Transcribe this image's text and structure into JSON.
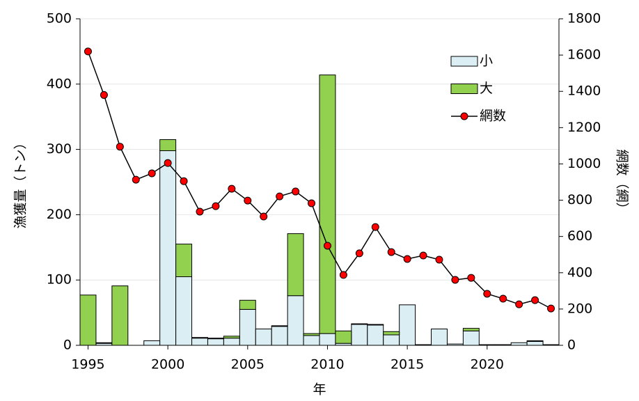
{
  "chart_data": {
    "type": "bar-line",
    "xlabel": "年",
    "ylabel": "漁獲量（トン）",
    "y2label": "網数（網）",
    "x": [
      1995,
      1996,
      1997,
      1998,
      1999,
      2000,
      2001,
      2002,
      2003,
      2004,
      2005,
      2006,
      2007,
      2008,
      2009,
      2010,
      2011,
      2012,
      2013,
      2014,
      2015,
      2016,
      2017,
      2018,
      2019,
      2020,
      2021,
      2022,
      2023,
      2024
    ],
    "series": [
      {
        "name": "小",
        "type": "bar",
        "color": "#daeef3",
        "values": [
          0,
          3,
          0,
          0,
          7,
          298,
          105,
          11,
          10,
          11,
          55,
          25,
          29,
          76,
          15,
          18,
          3,
          32,
          31,
          16,
          62,
          1,
          25,
          2,
          22,
          1,
          1,
          4,
          6,
          1
        ]
      },
      {
        "name": "大",
        "type": "bar",
        "color": "#92d050",
        "values": [
          77,
          1,
          91,
          0,
          0,
          17,
          50,
          1,
          1,
          3,
          14,
          0,
          1,
          95,
          3,
          396,
          19,
          1,
          1,
          5,
          0,
          0,
          0,
          0,
          4,
          0,
          0,
          0,
          1,
          0
        ]
      },
      {
        "name": "網数",
        "type": "line",
        "axis": "y2",
        "color": "#ff0000",
        "values": [
          1620,
          1380,
          1095,
          913,
          948,
          1005,
          905,
          737,
          767,
          863,
          798,
          710,
          821,
          848,
          783,
          549,
          388,
          507,
          652,
          514,
          476,
          495,
          472,
          361,
          372,
          284,
          257,
          226,
          249,
          203
        ]
      }
    ],
    "xlim": [
      1994.5,
      2024.5
    ],
    "xticks": [
      1995,
      2000,
      2005,
      2010,
      2015,
      2020
    ],
    "ylim": [
      0,
      500
    ],
    "yticks": [
      0,
      100,
      200,
      300,
      400,
      500
    ],
    "y2lim": [
      0,
      1800
    ],
    "y2ticks": [
      0,
      200,
      400,
      600,
      800,
      1000,
      1200,
      1400,
      1600,
      1800
    ],
    "grid": true,
    "legend": "upper right"
  }
}
